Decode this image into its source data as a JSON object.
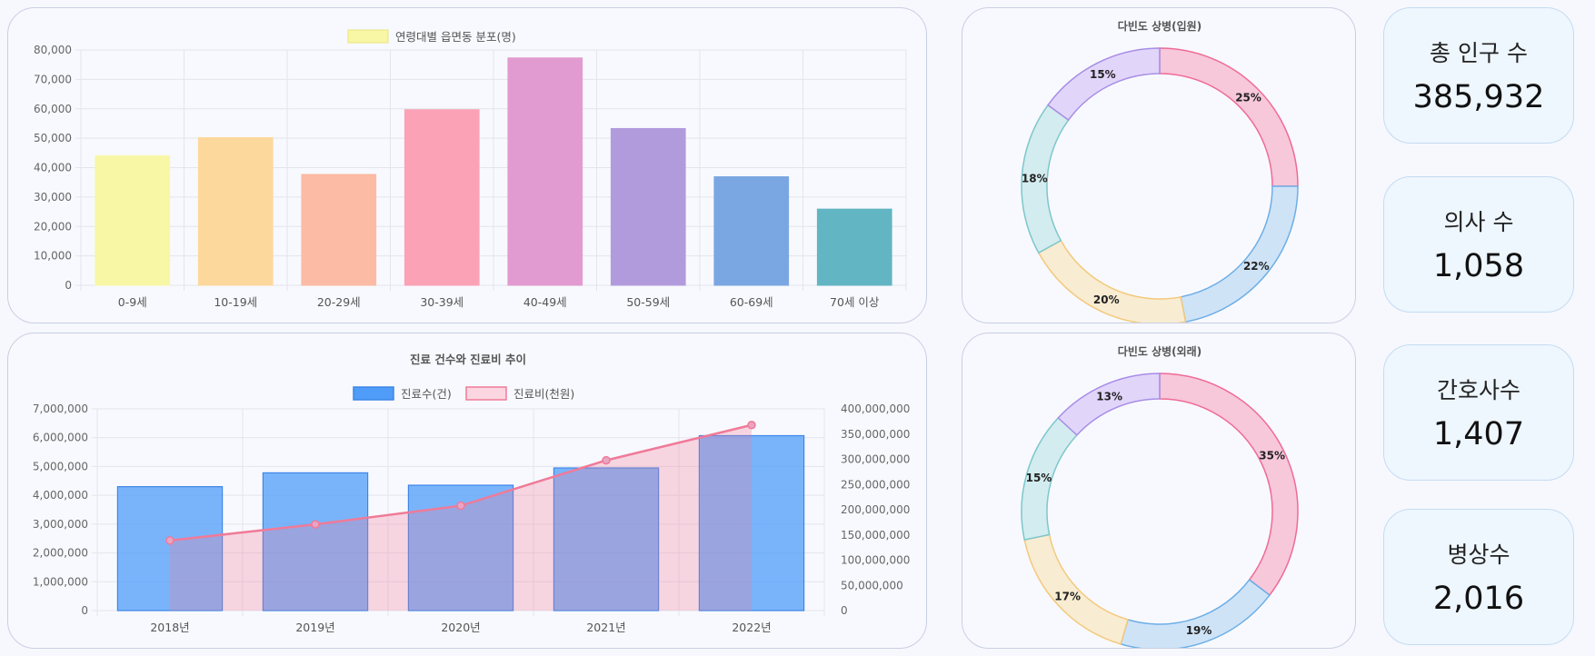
{
  "chart_data": [
    {
      "type": "bar",
      "legend": [
        "연령대별 읍면동 분포(명)"
      ],
      "categories": [
        "0-9세",
        "10-19세",
        "20-29세",
        "30-39세",
        "40-49세",
        "50-59세",
        "60-69세",
        "70세 이상"
      ],
      "values": [
        44000,
        50200,
        37700,
        59700,
        77300,
        53300,
        36900,
        25900
      ],
      "colors": [
        "#f8f7a6",
        "#fdd89c",
        "#fbbba4",
        "#fba2b6",
        "#e29bd0",
        "#b29bdc",
        "#7aa7e2",
        "#62b5c2"
      ],
      "ylim": [
        0,
        80000
      ],
      "yticks": [
        "0",
        "10,000",
        "20,000",
        "30,000",
        "40,000",
        "50,000",
        "60,000",
        "70,000",
        "80,000"
      ],
      "legend_position": "top",
      "grid": true
    },
    {
      "type": "bar+line",
      "title": "진료 건수와 진료비 추이",
      "categories": [
        "2018년",
        "2019년",
        "2020년",
        "2021년",
        "2022년"
      ],
      "series": [
        {
          "name": "진료수(건)",
          "type": "bar",
          "axis": "left",
          "values": [
            4300000,
            4780000,
            4350000,
            4950000,
            6070000
          ],
          "color": "#4f9cf9"
        },
        {
          "name": "진료비(천원)",
          "type": "line",
          "axis": "right",
          "values": [
            139000000,
            171000000,
            208000000,
            298000000,
            368000000
          ],
          "color": "#f07a98"
        }
      ],
      "ylim_left": [
        0,
        7000000
      ],
      "ylim_right": [
        0,
        400000000
      ],
      "yticks_left": [
        "0",
        "1,000,000",
        "2,000,000",
        "3,000,000",
        "4,000,000",
        "5,000,000",
        "6,000,000",
        "7,000,000"
      ],
      "yticks_right": [
        "0",
        "50,000,000",
        "100,000,000",
        "150,000,000",
        "200,000,000",
        "250,000,000",
        "300,000,000",
        "350,000,000",
        "400,000,000"
      ],
      "legend_position": "top",
      "grid": true
    },
    {
      "type": "pie",
      "title": "다빈도 상병(입원)",
      "values": [
        25,
        22,
        20,
        18,
        15
      ],
      "labels": [
        "25%",
        "22%",
        "20%",
        "18%",
        "15%"
      ],
      "fills": [
        "#f7c7da",
        "#cfe3f7",
        "#f8ecd2",
        "#d3ecef",
        "#e1d6f9"
      ],
      "strokes": [
        "#ef6b95",
        "#6caee6",
        "#f3c97d",
        "#7cc7cc",
        "#a88ce8"
      ]
    },
    {
      "type": "pie",
      "title": "다빈도 상병(외래)",
      "values": [
        35,
        19,
        17,
        15,
        13
      ],
      "labels": [
        "35%",
        "19%",
        "17%",
        "15%",
        "13%"
      ],
      "fills": [
        "#f7c7da",
        "#cfe3f7",
        "#f8ecd2",
        "#d3ecef",
        "#e1d6f9"
      ],
      "strokes": [
        "#ef6b95",
        "#6caee6",
        "#f3c97d",
        "#7cc7cc",
        "#a88ce8"
      ]
    }
  ],
  "stats": [
    {
      "label": "총 인구 수",
      "value": "385,932"
    },
    {
      "label": "의사 수",
      "value": "1,058"
    },
    {
      "label": "간호사수",
      "value": "1,407"
    },
    {
      "label": "병상수",
      "value": "2,016"
    }
  ]
}
